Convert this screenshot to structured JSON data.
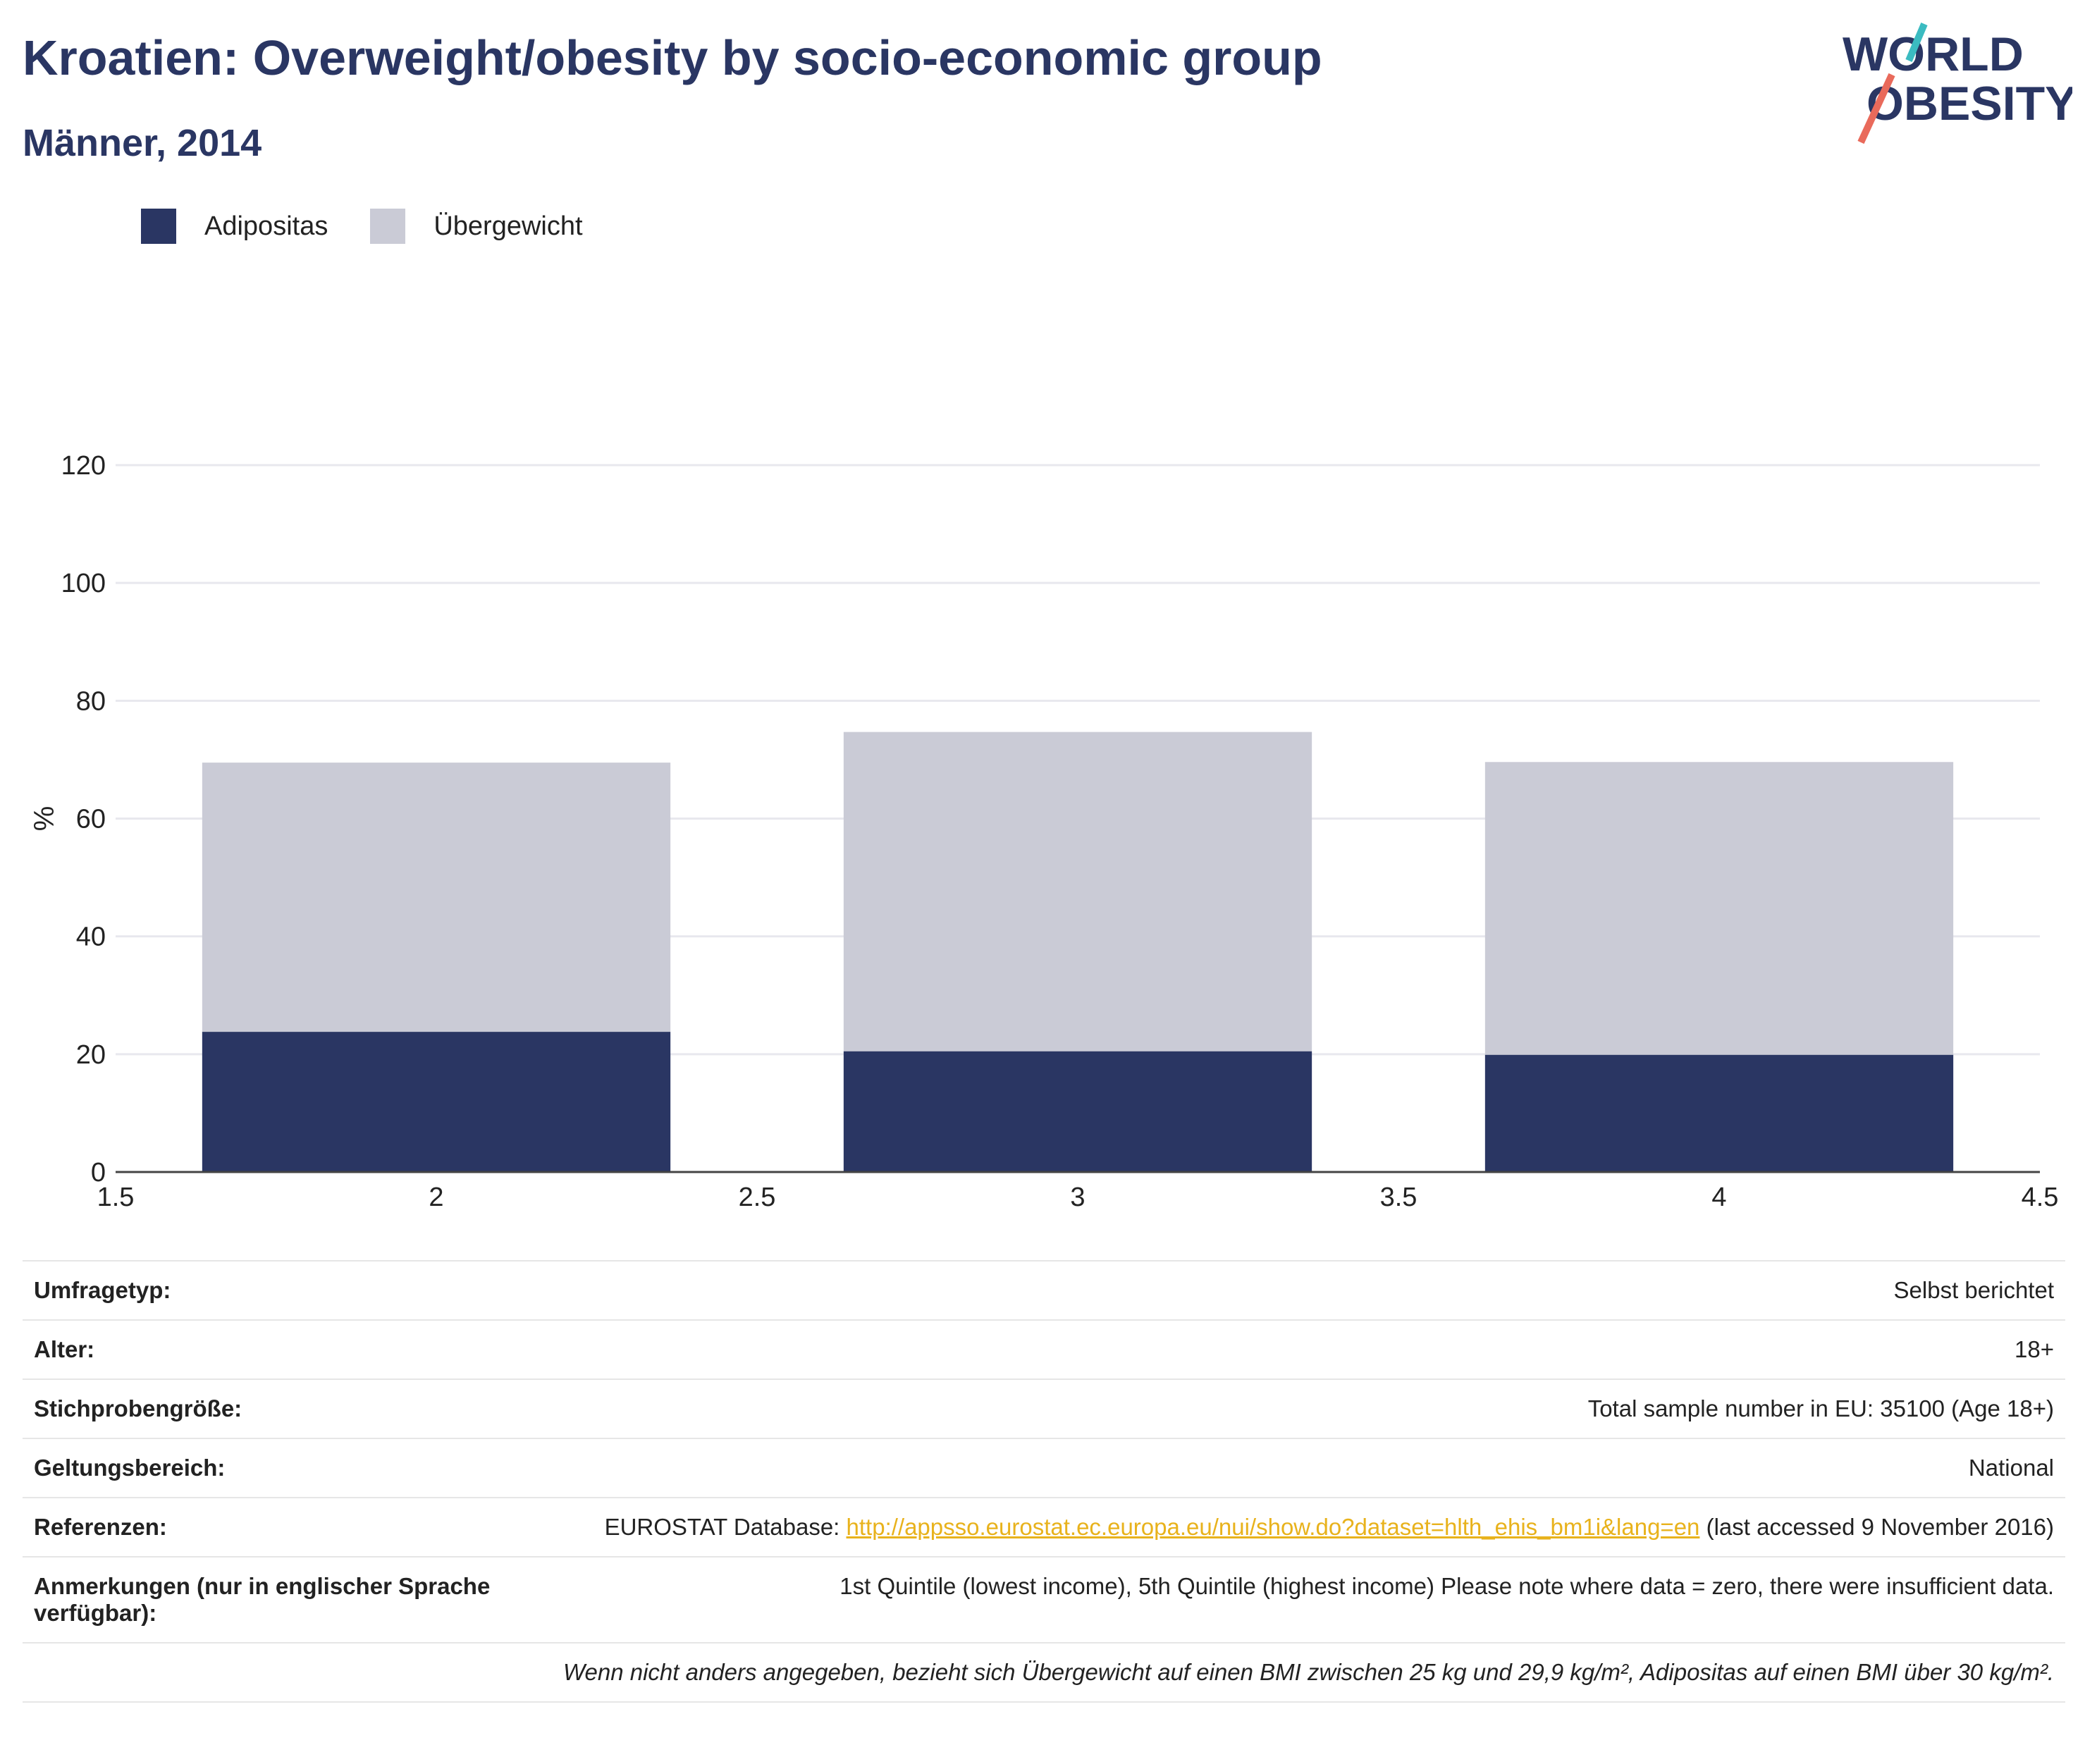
{
  "header": {
    "title": "Kroatien: Overweight/obesity by socio-economic group",
    "subtitle": "Männer, 2014"
  },
  "logo": {
    "line1": "WORLD",
    "line2": "OBESITY"
  },
  "colors": {
    "obesity": "#2a3663",
    "overweight": "#cacbd6",
    "title": "#2a3663",
    "link": "#e8b21c",
    "logo_teal": "#3bbbc1",
    "logo_coral": "#e96a5b"
  },
  "chart_data": {
    "type": "bar",
    "stacked": true,
    "x": [
      2,
      3,
      4
    ],
    "series": [
      {
        "name": "Adipositas",
        "values": [
          23.8,
          20.5,
          19.9
        ]
      },
      {
        "name": "Übergewicht",
        "values": [
          45.7,
          54.2,
          49.7
        ]
      }
    ],
    "ylabel": "%",
    "xlabel": "",
    "ylim": [
      0,
      120
    ],
    "xlim": [
      1.5,
      4.5
    ],
    "yticks": [
      0,
      20,
      40,
      60,
      80,
      100,
      120
    ],
    "xticks": [
      "1.5",
      "2",
      "2.5",
      "3",
      "3.5",
      "4",
      "4.5"
    ],
    "grid": true,
    "legend_position": "top-left"
  },
  "info": {
    "rows": [
      {
        "key": "Umfragetyp:",
        "value": "Selbst berichtet"
      },
      {
        "key": "Alter:",
        "value": "18+"
      },
      {
        "key": "Stichprobengröße:",
        "value": "Total sample number in EU: 35100 (Age 18+)"
      },
      {
        "key": "Geltungsbereich:",
        "value": "National"
      }
    ],
    "references": {
      "key": "Referenzen:",
      "prefix": "EUROSTAT Database: ",
      "link": "http://appsso.eurostat.ec.europa.eu/nui/show.do?dataset=hlth_ehis_bm1i&lang=en",
      "suffix": " (last accessed 9 November 2016)"
    },
    "notes": {
      "key": "Anmerkungen (nur in englischer Sprache verfügbar):",
      "value": "1st Quintile (lowest income), 5th Quintile (highest income) Please note where data = zero, there were insufficient data."
    },
    "footnote": "Wenn nicht anders angegeben, bezieht sich Übergewicht auf einen BMI zwischen 25 kg und 29,9 kg/m², Adipositas auf einen BMI über 30 kg/m²."
  }
}
